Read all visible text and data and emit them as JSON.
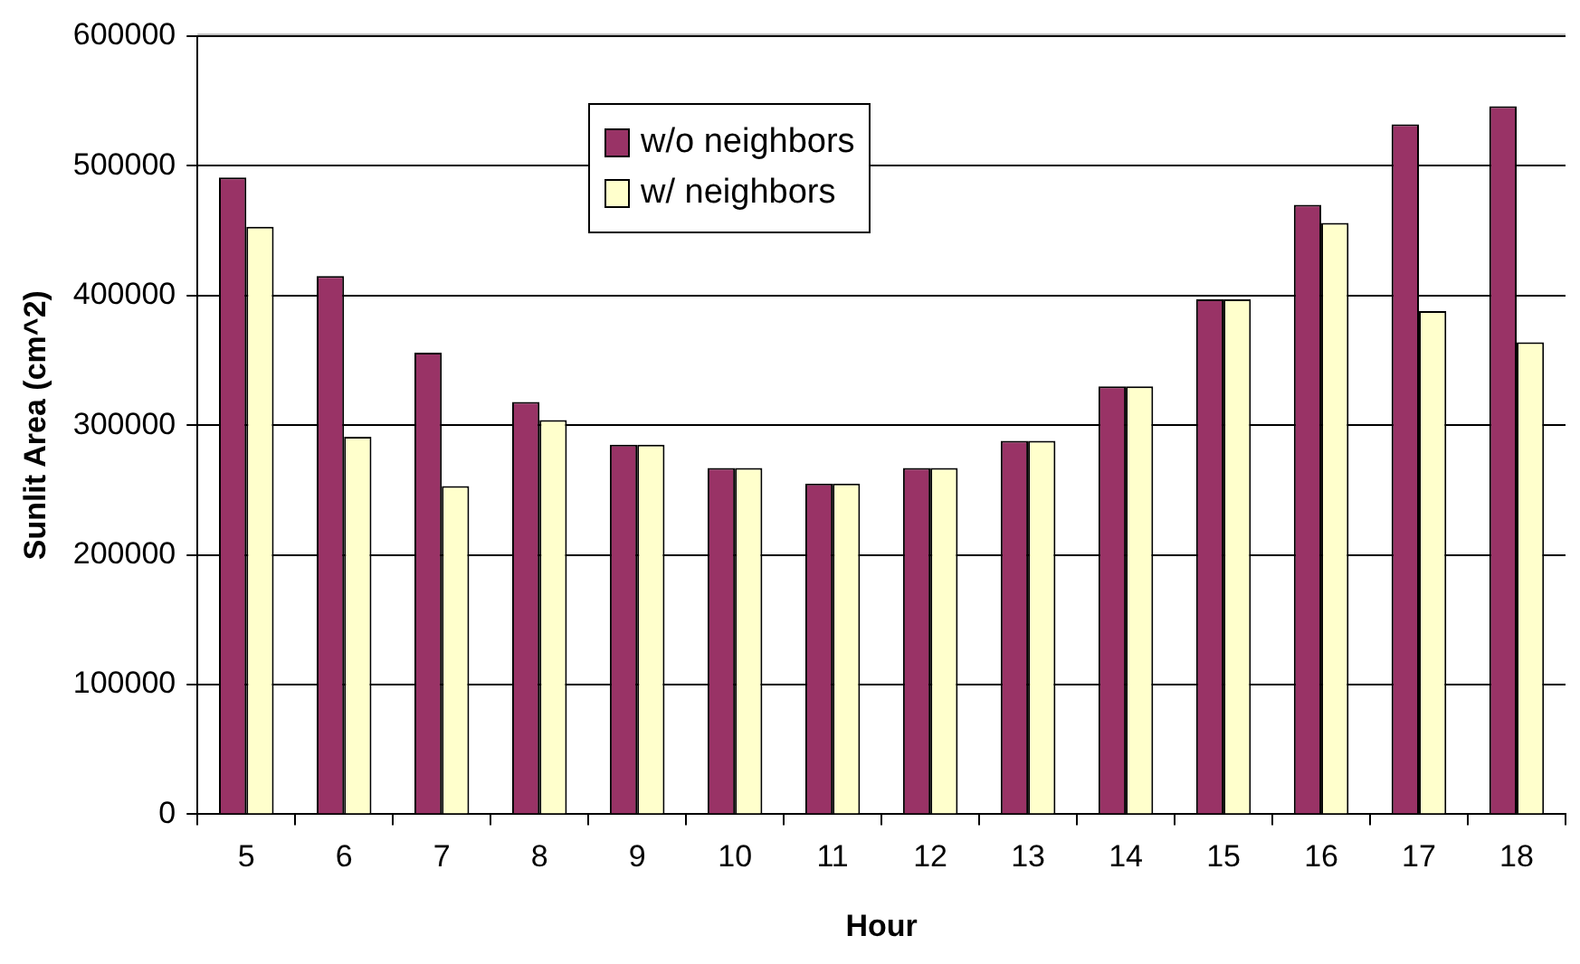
{
  "chart_data": {
    "type": "bar",
    "xlabel": "Hour",
    "ylabel": "Sunlit Area (cm^2)",
    "categories": [
      "5",
      "6",
      "7",
      "8",
      "9",
      "10",
      "11",
      "12",
      "13",
      "14",
      "15",
      "16",
      "17",
      "18"
    ],
    "series": [
      {
        "name": "w/o neighbors",
        "color": "#993366",
        "values": [
          491000,
          415000,
          356000,
          318000,
          285000,
          267000,
          255000,
          267000,
          288000,
          330000,
          397000,
          470000,
          532000,
          546000
        ]
      },
      {
        "name": "w/ neighbors",
        "color": "#ffffcc",
        "values": [
          453000,
          291000,
          253000,
          304000,
          285000,
          267000,
          255000,
          267000,
          288000,
          330000,
          397000,
          456000,
          388000,
          364000
        ]
      }
    ],
    "ylim": [
      0,
      600000
    ],
    "yticks": [
      0,
      100000,
      200000,
      300000,
      400000,
      500000,
      600000
    ],
    "grid": "y",
    "legend": "top"
  }
}
